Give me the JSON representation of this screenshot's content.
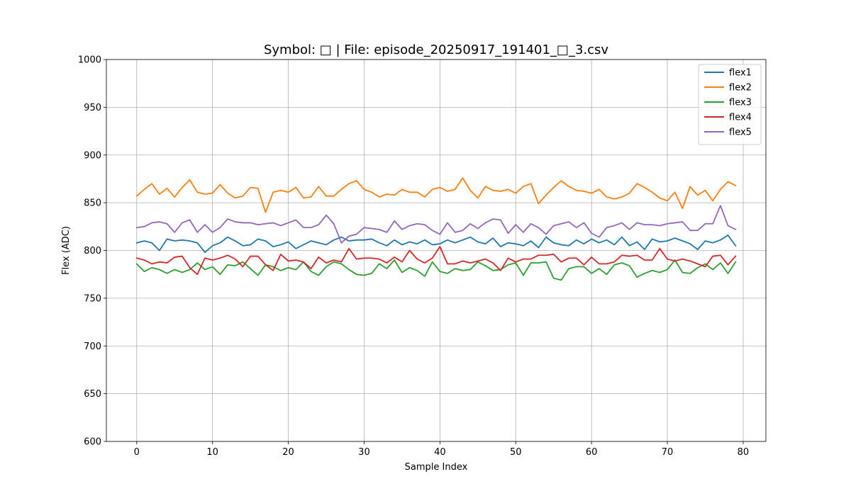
{
  "chart_data": {
    "type": "line",
    "title": "Symbol: □ | File: episode_20250917_191401_□_3.csv",
    "xlabel": "Sample Index",
    "ylabel": "Flex (ADC)",
    "xlim": [
      -4,
      83
    ],
    "ylim": [
      600,
      1000
    ],
    "xticks": [
      0,
      10,
      20,
      30,
      40,
      50,
      60,
      70,
      80
    ],
    "yticks": [
      600,
      650,
      700,
      750,
      800,
      850,
      900,
      950,
      1000
    ],
    "grid": true,
    "legend_position": "top-right",
    "x": [
      0,
      1,
      2,
      3,
      4,
      5,
      6,
      7,
      8,
      9,
      10,
      11,
      12,
      13,
      14,
      15,
      16,
      17,
      18,
      19,
      20,
      21,
      22,
      23,
      24,
      25,
      26,
      27,
      28,
      29,
      30,
      31,
      32,
      33,
      34,
      35,
      36,
      37,
      38,
      39,
      40,
      41,
      42,
      43,
      44,
      45,
      46,
      47,
      48,
      49,
      50,
      51,
      52,
      53,
      54,
      55,
      56,
      57,
      58,
      59,
      60,
      61,
      62,
      63,
      64,
      65,
      66,
      67,
      68,
      69,
      70,
      71,
      72,
      73,
      74,
      75,
      76,
      77,
      78,
      79
    ],
    "series": [
      {
        "name": "flex1",
        "color": "#1f77b4",
        "values": [
          808,
          810,
          808,
          800,
          812,
          810,
          811,
          810,
          808,
          798,
          805,
          808,
          814,
          810,
          805,
          806,
          812,
          810,
          804,
          806,
          809,
          802,
          806,
          810,
          808,
          806,
          811,
          814,
          810,
          811,
          811,
          812,
          808,
          805,
          811,
          806,
          809,
          807,
          811,
          806,
          807,
          811,
          808,
          811,
          814,
          809,
          807,
          813,
          804,
          808,
          807,
          805,
          810,
          803,
          814,
          808,
          806,
          805,
          811,
          807,
          812,
          808,
          811,
          806,
          814,
          805,
          809,
          801,
          812,
          809,
          810,
          813,
          810,
          807,
          801,
          810,
          808,
          811,
          816,
          805
        ]
      },
      {
        "name": "flex2",
        "color": "#ff7f0e",
        "values": [
          857,
          864,
          870,
          859,
          865,
          856,
          866,
          874,
          861,
          859,
          860,
          869,
          860,
          855,
          857,
          866,
          865,
          840,
          861,
          863,
          861,
          866,
          855,
          856,
          867,
          857,
          857,
          864,
          870,
          873,
          864,
          861,
          856,
          859,
          858,
          864,
          861,
          861,
          856,
          864,
          866,
          862,
          864,
          876,
          863,
          855,
          867,
          863,
          862,
          864,
          860,
          867,
          870,
          849,
          858,
          866,
          873,
          867,
          863,
          862,
          860,
          864,
          856,
          854,
          856,
          860,
          870,
          866,
          861,
          855,
          852,
          861,
          844,
          867,
          858,
          863,
          852,
          864,
          872,
          868
        ]
      },
      {
        "name": "flex3",
        "color": "#2ca02c",
        "values": [
          786,
          778,
          782,
          780,
          776,
          780,
          777,
          780,
          787,
          780,
          783,
          775,
          785,
          784,
          788,
          781,
          774,
          785,
          783,
          779,
          782,
          780,
          788,
          778,
          774,
          783,
          788,
          786,
          780,
          775,
          774,
          776,
          786,
          781,
          790,
          777,
          782,
          779,
          773,
          788,
          778,
          776,
          781,
          779,
          780,
          788,
          784,
          779,
          780,
          785,
          787,
          774,
          787,
          787,
          788,
          771,
          769,
          781,
          783,
          783,
          776,
          781,
          775,
          785,
          787,
          784,
          772,
          776,
          779,
          777,
          780,
          790,
          777,
          776,
          782,
          786,
          780,
          787,
          776,
          788
        ]
      },
      {
        "name": "flex4",
        "color": "#d62728",
        "values": [
          792,
          790,
          786,
          788,
          787,
          793,
          794,
          782,
          775,
          792,
          790,
          792,
          795,
          791,
          783,
          794,
          794,
          785,
          779,
          796,
          789,
          790,
          788,
          781,
          793,
          787,
          790,
          788,
          802,
          791,
          792,
          792,
          791,
          787,
          793,
          788,
          800,
          791,
          787,
          792,
          804,
          786,
          786,
          789,
          787,
          789,
          791,
          787,
          779,
          792,
          788,
          791,
          791,
          795,
          795,
          796,
          788,
          792,
          792,
          785,
          793,
          786,
          786,
          788,
          795,
          794,
          795,
          790,
          790,
          802,
          791,
          789,
          791,
          789,
          786,
          783,
          794,
          795,
          785,
          794
        ]
      },
      {
        "name": "flex5",
        "color": "#9467bd",
        "values": [
          824,
          825,
          829,
          830,
          828,
          819,
          829,
          832,
          819,
          827,
          819,
          824,
          833,
          830,
          829,
          829,
          827,
          828,
          829,
          826,
          829,
          832,
          824,
          824,
          827,
          837,
          828,
          808,
          815,
          817,
          824,
          823,
          822,
          819,
          831,
          822,
          826,
          828,
          827,
          821,
          817,
          829,
          819,
          821,
          828,
          823,
          829,
          833,
          832,
          818,
          827,
          819,
          828,
          824,
          817,
          826,
          828,
          830,
          824,
          829,
          818,
          814,
          824,
          826,
          829,
          822,
          829,
          827,
          827,
          826,
          828,
          829,
          830,
          821,
          821,
          828,
          828,
          847,
          826,
          822
        ]
      }
    ]
  }
}
